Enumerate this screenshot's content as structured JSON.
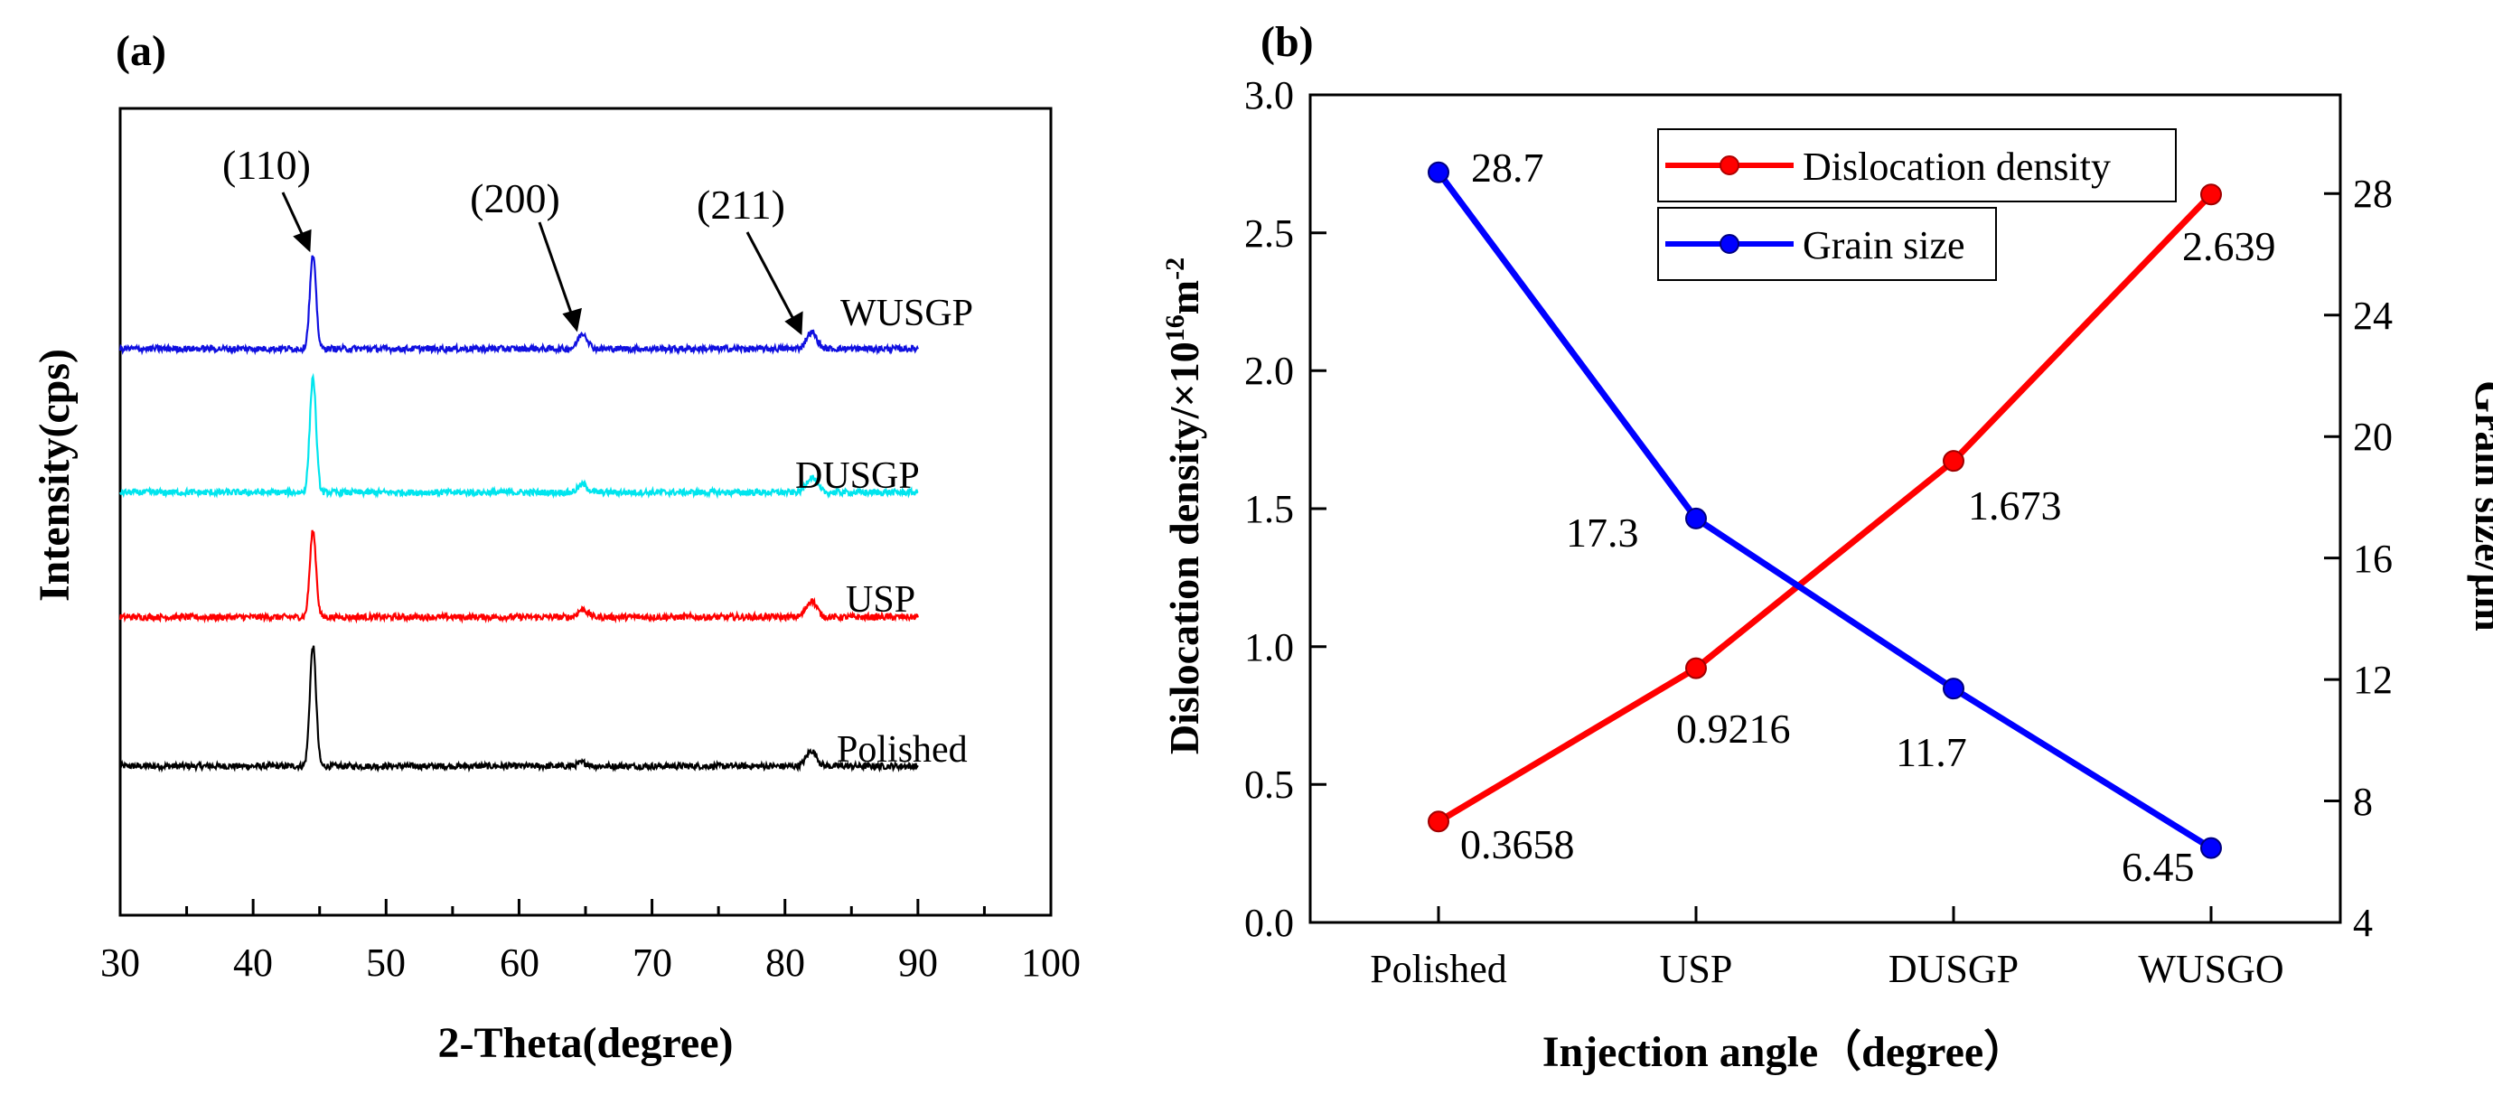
{
  "colors": {
    "polished": "#000000",
    "usp": "#ff0000",
    "dusgp": "#00e5ee",
    "wusgp": "#1010e0",
    "dislocation": "#ff0000",
    "grain": "#0000ff",
    "axis": "#000000"
  },
  "chart_data": [
    {
      "panel": "(a)",
      "type": "line",
      "xlabel": "2-Theta(degree)",
      "ylabel": "Intensity(cps)",
      "xlim": [
        30,
        100
      ],
      "xticks": [
        "30",
        "40",
        "50",
        "60",
        "70",
        "80",
        "90",
        "100"
      ],
      "x_range": [
        30,
        90
      ],
      "series": [
        {
          "name": "Polished",
          "color": "#000000",
          "offset": 0,
          "noise": 0.18,
          "peaks": [
            [
              44.5,
              7.0,
              0.33
            ],
            [
              64.8,
              0.2,
              0.5
            ],
            [
              82.0,
              0.9,
              0.55
            ]
          ]
        },
        {
          "name": "USP",
          "color": "#ff0000",
          "offset": 1,
          "noise": 0.18,
          "peaks": [
            [
              44.5,
              5.0,
              0.33
            ],
            [
              64.8,
              0.45,
              0.5
            ],
            [
              82.0,
              0.95,
              0.55
            ]
          ]
        },
        {
          "name": "DUSGP",
          "color": "#00e5ee",
          "offset": 2,
          "noise": 0.18,
          "peaks": [
            [
              44.5,
              6.7,
              0.33
            ],
            [
              64.8,
              0.45,
              0.5
            ],
            [
              82.0,
              0.9,
              0.55
            ]
          ]
        },
        {
          "name": "WUSGP",
          "color": "#1010e0",
          "offset": 3,
          "noise": 0.18,
          "peaks": [
            [
              44.5,
              5.4,
              0.33
            ],
            [
              64.8,
              0.9,
              0.5
            ],
            [
              82.0,
              0.95,
              0.55
            ]
          ]
        }
      ],
      "peak_labels": [
        {
          "label": "(110)",
          "two_theta": 44.5
        },
        {
          "label": "(200)",
          "two_theta": 64.8
        },
        {
          "label": "(211)",
          "two_theta": 82.0
        }
      ]
    },
    {
      "panel": "(b)",
      "type": "line",
      "categories": [
        "Polished",
        "USP",
        "DUSGP",
        "WUSGO"
      ],
      "xlabel": "Injection angle（degree）",
      "ylabel_left": "Dislocation density/×10",
      "ylabel_left_sup1": "16",
      "ylabel_left_unit": "m",
      "ylabel_left_sup2": "-2",
      "ylabel_right": "Grain size/μm",
      "ylim_left": [
        0.0,
        3.0
      ],
      "yticks_left": [
        "0.0",
        "0.5",
        "1.0",
        "1.5",
        "2.0",
        "2.5",
        "3.0"
      ],
      "ylim_right": [
        4,
        31.25
      ],
      "yticks_right": [
        "4",
        "8",
        "12",
        "16",
        "20",
        "24",
        "28"
      ],
      "series": [
        {
          "name": "Dislocation density",
          "axis": "left",
          "color": "#ff0000",
          "values": [
            0.3658,
            0.9216,
            1.673,
            2.639
          ],
          "labels": [
            "0.3658",
            "0.9216",
            "1.673",
            "2.639"
          ]
        },
        {
          "name": "Grain size",
          "axis": "right",
          "color": "#0000ff",
          "values": [
            28.7,
            17.3,
            11.7,
            6.45
          ],
          "labels": [
            "28.7",
            "17.3",
            "11.7",
            "6.45"
          ]
        }
      ],
      "legend": "top-center"
    }
  ]
}
